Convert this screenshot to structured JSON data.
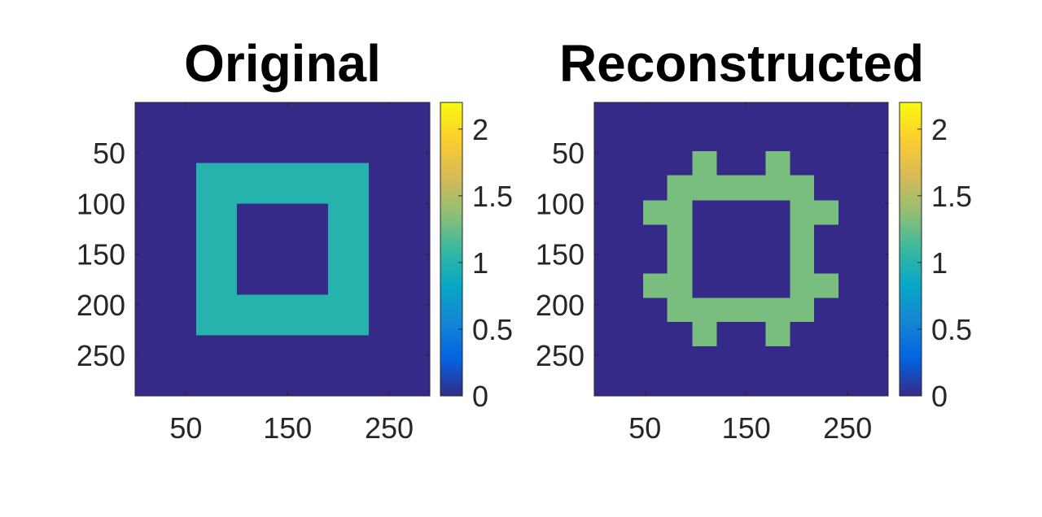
{
  "chart_data": [
    {
      "type": "heatmap",
      "title": "Original",
      "xlabel": "",
      "ylabel": "",
      "xlim": [
        0,
        290
      ],
      "ylim": [
        0,
        290
      ],
      "x_ticks": [
        50,
        150,
        250
      ],
      "y_ticks": [
        50,
        100,
        150,
        200,
        250
      ],
      "x_tick_labels": [
        "50",
        "150",
        "250"
      ],
      "y_tick_labels": [
        "50",
        "100",
        "150",
        "200",
        "250"
      ],
      "y_reversed": true,
      "background_value": 0,
      "regions": [
        {
          "x0": 60,
          "x1": 230,
          "y0": 60,
          "y1": 230,
          "value": 1
        },
        {
          "x0": 100,
          "x1": 190,
          "y0": 100,
          "y1": 190,
          "value": 0
        }
      ],
      "colorbar": {
        "colormap": "parula",
        "range": [
          0,
          2.2
        ],
        "ticks": [
          0,
          0.5,
          1,
          1.5,
          2
        ],
        "tick_labels": [
          "0",
          "0.5",
          "1",
          "1.5",
          "2"
        ]
      }
    },
    {
      "type": "heatmap",
      "title": "Reconstructed",
      "xlabel": "",
      "ylabel": "",
      "xlim": [
        0,
        290
      ],
      "ylim": [
        0,
        290
      ],
      "x_ticks": [
        50,
        150,
        250
      ],
      "y_ticks": [
        50,
        100,
        150,
        200,
        250
      ],
      "x_tick_labels": [
        "50",
        "150",
        "250"
      ],
      "y_tick_labels": [
        "50",
        "100",
        "150",
        "200",
        "250"
      ],
      "y_reversed": true,
      "background_value": 0,
      "regions": [
        {
          "x0": 72,
          "x1": 217,
          "y0": 72,
          "y1": 217,
          "value": 1.3
        },
        {
          "x0": 97,
          "x1": 193,
          "y0": 97,
          "y1": 193,
          "value": 0
        },
        {
          "x0": 48,
          "x1": 72,
          "y0": 97,
          "y1": 121,
          "value": 1.3
        },
        {
          "x0": 48,
          "x1": 72,
          "y0": 169,
          "y1": 193,
          "value": 1.3
        },
        {
          "x0": 217,
          "x1": 241,
          "y0": 97,
          "y1": 121,
          "value": 1.3
        },
        {
          "x0": 217,
          "x1": 241,
          "y0": 169,
          "y1": 193,
          "value": 1.3
        },
        {
          "x0": 97,
          "x1": 121,
          "y0": 48,
          "y1": 72,
          "value": 1.3
        },
        {
          "x0": 169,
          "x1": 193,
          "y0": 48,
          "y1": 72,
          "value": 1.3
        },
        {
          "x0": 97,
          "x1": 121,
          "y0": 217,
          "y1": 241,
          "value": 1.3
        },
        {
          "x0": 169,
          "x1": 193,
          "y0": 217,
          "y1": 241,
          "value": 1.3
        }
      ],
      "colorbar": {
        "colormap": "parula",
        "range": [
          0,
          2.2
        ],
        "ticks": [
          0,
          0.5,
          1,
          1.5,
          2
        ],
        "tick_labels": [
          "0",
          "0.5",
          "1",
          "1.5",
          "2"
        ]
      }
    }
  ]
}
